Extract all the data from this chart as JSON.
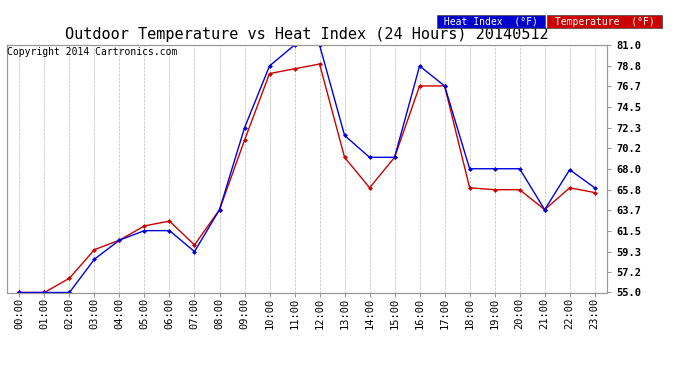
{
  "title": "Outdoor Temperature vs Heat Index (24 Hours) 20140512",
  "copyright": "Copyright 2014 Cartronics.com",
  "hours": [
    "00:00",
    "01:00",
    "02:00",
    "03:00",
    "04:00",
    "05:00",
    "06:00",
    "07:00",
    "08:00",
    "09:00",
    "10:00",
    "11:00",
    "12:00",
    "13:00",
    "14:00",
    "15:00",
    "16:00",
    "17:00",
    "18:00",
    "19:00",
    "20:00",
    "21:00",
    "22:00",
    "23:00"
  ],
  "heat_index": [
    55.0,
    55.0,
    55.0,
    58.5,
    60.5,
    61.5,
    61.5,
    59.3,
    63.7,
    72.3,
    78.8,
    81.0,
    81.0,
    71.5,
    69.2,
    69.2,
    78.8,
    76.7,
    68.0,
    68.0,
    68.0,
    63.7,
    67.9,
    66.0
  ],
  "temperature": [
    55.0,
    55.0,
    56.5,
    59.5,
    60.5,
    62.0,
    62.5,
    60.0,
    63.7,
    71.0,
    78.0,
    78.5,
    79.0,
    69.2,
    66.0,
    69.2,
    76.7,
    76.7,
    66.0,
    65.8,
    65.8,
    63.7,
    66.0,
    65.5
  ],
  "heat_index_color": "#0000dd",
  "temperature_color": "#cc0000",
  "ylim_min": 55.0,
  "ylim_max": 81.0,
  "yticks": [
    55.0,
    57.2,
    59.3,
    61.5,
    63.7,
    65.8,
    68.0,
    70.2,
    72.3,
    74.5,
    76.7,
    78.8,
    81.0
  ],
  "bg_color": "#ffffff",
  "grid_color": "#bbbbbb",
  "legend_hi_bg": "#0000cc",
  "legend_temp_bg": "#cc0000",
  "title_fontsize": 11,
  "copyright_fontsize": 7,
  "tick_fontsize": 7.5
}
